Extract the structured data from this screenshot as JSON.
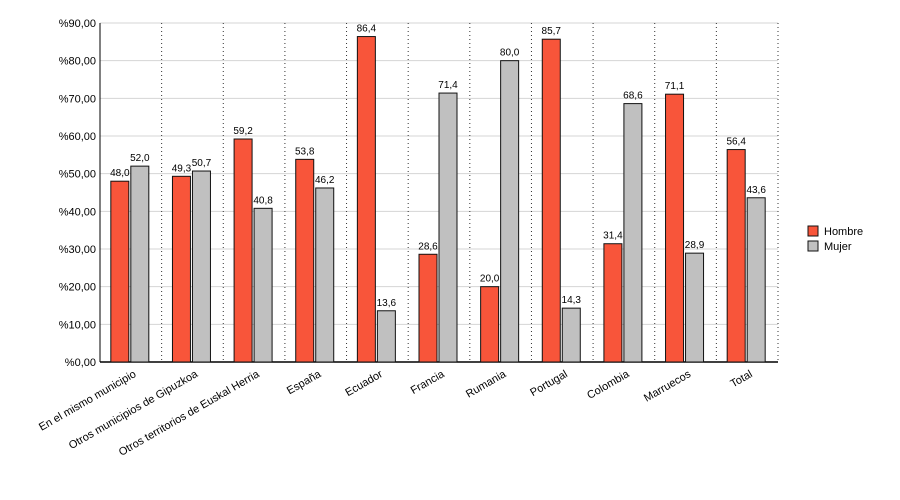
{
  "chart_data": {
    "type": "bar",
    "categories": [
      "En el mismo municipio",
      "Otros municipios de Gipuzkoa",
      "Otros territorios de Euskal Herria",
      "España",
      "Ecuador",
      "Francia",
      "Rumania",
      "Portugal",
      "Colombia",
      "Marruecos",
      "Total"
    ],
    "series": [
      {
        "name": "Hombre",
        "color": "#f8553a",
        "values": [
          48.0,
          49.3,
          59.2,
          53.8,
          86.4,
          28.6,
          20.0,
          85.7,
          31.4,
          71.1,
          56.4
        ],
        "value_labels": [
          "48,0",
          "49,3",
          "59,2",
          "53,8",
          "86,4",
          "28,6",
          "20,0",
          "85,7",
          "31,4",
          "71,1",
          "56,4"
        ]
      },
      {
        "name": "Mujer",
        "color": "#c0c0c0",
        "values": [
          52.0,
          50.7,
          40.8,
          46.2,
          13.6,
          71.4,
          80.0,
          14.3,
          68.6,
          28.9,
          43.6
        ],
        "value_labels": [
          "52,0",
          "50,7",
          "40,8",
          "46,2",
          "13,6",
          "71,4",
          "80,0",
          "14,3",
          "68,6",
          "28,9",
          "43,6"
        ]
      }
    ],
    "ylim": [
      0,
      90
    ],
    "yticks": [
      {
        "value": 0,
        "label": "%0,00"
      },
      {
        "value": 10,
        "label": "%10,00"
      },
      {
        "value": 20,
        "label": "%20,00"
      },
      {
        "value": 30,
        "label": "%30,00"
      },
      {
        "value": 40,
        "label": "%40,00"
      },
      {
        "value": 50,
        "label": "%50,00"
      },
      {
        "value": 60,
        "label": "%60,00"
      },
      {
        "value": 70,
        "label": "%70,00"
      },
      {
        "value": 80,
        "label": "%80,00"
      },
      {
        "value": 90,
        "label": "%90,00"
      }
    ],
    "grid": true,
    "legend": "right"
  }
}
